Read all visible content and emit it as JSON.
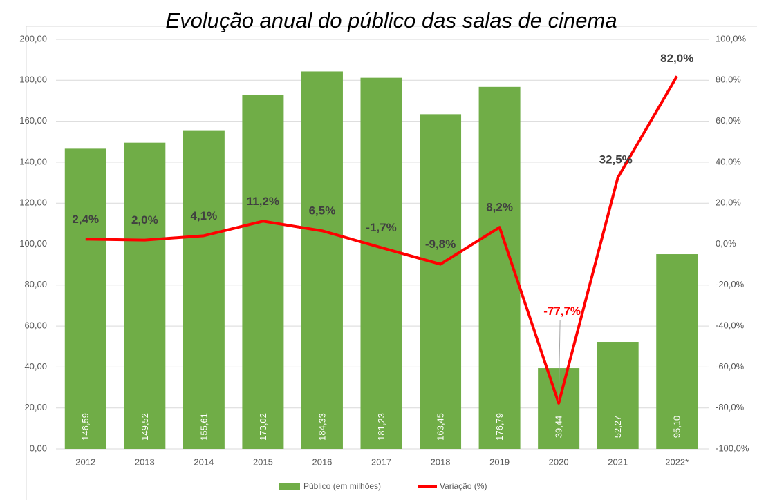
{
  "chart_data": {
    "type": "bar",
    "title": "Evolução anual do público das salas de cinema",
    "categories": [
      "2012",
      "2013",
      "2014",
      "2015",
      "2016",
      "2017",
      "2018",
      "2019",
      "2020",
      "2021",
      "2022*"
    ],
    "series": [
      {
        "name": "Público (em milhões)",
        "type": "bar",
        "color": "#70ad47",
        "values": [
          146.59,
          149.52,
          155.61,
          173.02,
          184.33,
          181.23,
          163.45,
          176.79,
          39.44,
          52.27,
          95.1
        ],
        "value_labels": [
          "146,59",
          "149,52",
          "155,61",
          "173,02",
          "184,33",
          "181,23",
          "163,45",
          "176,79",
          "39,44",
          "52,27",
          "95,10"
        ]
      },
      {
        "name": "Variação (%)",
        "type": "line",
        "axis": "y2",
        "color": "#ff0000",
        "values": [
          2.4,
          2.0,
          4.1,
          11.2,
          6.5,
          -1.7,
          -9.8,
          8.2,
          -77.7,
          32.5,
          82.0
        ],
        "value_labels": [
          "2,4%",
          "2,0%",
          "4,1%",
          "11,2%",
          "6,5%",
          "-1,7%",
          "-9,8%",
          "8,2%",
          "-77,7%",
          "32,5%",
          "82,0%"
        ],
        "value_label_colors": [
          "#404040",
          "#404040",
          "#404040",
          "#404040",
          "#404040",
          "#404040",
          "#404040",
          "#404040",
          "#ff0000",
          "#404040",
          "#404040"
        ]
      }
    ],
    "ylim": [
      0,
      200
    ],
    "yticks": [
      {
        "value": 0,
        "label": "0,00"
      },
      {
        "value": 20,
        "label": "20,00"
      },
      {
        "value": 40,
        "label": "40,00"
      },
      {
        "value": 60,
        "label": "60,00"
      },
      {
        "value": 80,
        "label": "80,00"
      },
      {
        "value": 100,
        "label": "100,00"
      },
      {
        "value": 120,
        "label": "120,00"
      },
      {
        "value": 140,
        "label": "140,00"
      },
      {
        "value": 160,
        "label": "160,00"
      },
      {
        "value": 180,
        "label": "180,00"
      },
      {
        "value": 200,
        "label": "200,00"
      }
    ],
    "y2lim": [
      -100,
      100
    ],
    "y2ticks": [
      {
        "value": -100,
        "label": "-100,0%"
      },
      {
        "value": -80,
        "label": "-80,0%"
      },
      {
        "value": -60,
        "label": "-60,0%"
      },
      {
        "value": -40,
        "label": "-40,0%"
      },
      {
        "value": -20,
        "label": "-20,0%"
      },
      {
        "value": 0,
        "label": "0,0%"
      },
      {
        "value": 20,
        "label": "20,0%"
      },
      {
        "value": 40,
        "label": "40,0%"
      },
      {
        "value": 60,
        "label": "60,0%"
      },
      {
        "value": 80,
        "label": "80,0%"
      },
      {
        "value": 100,
        "label": "100,0%"
      }
    ],
    "legend": "bottom"
  }
}
